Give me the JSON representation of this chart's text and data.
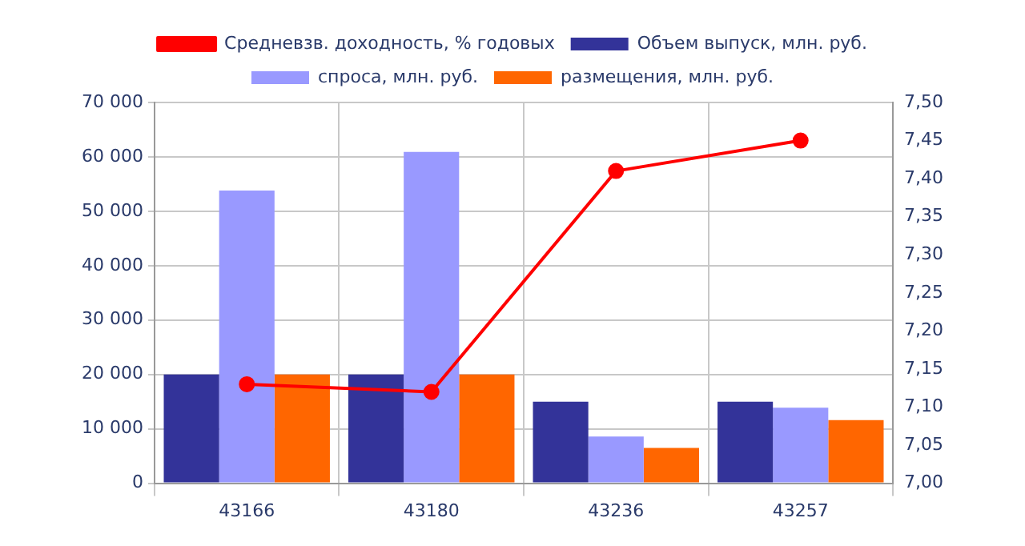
{
  "chart_data": {
    "type": "bar",
    "categories": [
      "43166",
      "43180",
      "43236",
      "43257"
    ],
    "series": [
      {
        "name": "Объем выпуск, млн. руб.",
        "color": "#333399",
        "values": [
          20000,
          20000,
          15000,
          15000
        ]
      },
      {
        "name": "спроса, млн. руб.",
        "color": "#9999ff",
        "values": [
          53800,
          60900,
          8600,
          13900
        ]
      },
      {
        "name": "размещения, млн. руб.",
        "color": "#ff6600",
        "values": [
          20000,
          20000,
          6500,
          11600
        ]
      },
      {
        "name": "Средневзв. доходность, % годовых",
        "color": "#ff0000",
        "type": "line",
        "axis": "y2",
        "marker": "circle",
        "line_style": "solid",
        "values": [
          7.13,
          7.12,
          7.41,
          7.45
        ]
      }
    ],
    "ylim": [
      0,
      70000
    ],
    "yticks": [
      {
        "value": 0,
        "label": "0"
      },
      {
        "value": 10000,
        "label": "10 000"
      },
      {
        "value": 20000,
        "label": "20 000"
      },
      {
        "value": 30000,
        "label": "30 000"
      },
      {
        "value": 40000,
        "label": "40 000"
      },
      {
        "value": 50000,
        "label": "50 000"
      },
      {
        "value": 60000,
        "label": "60 000"
      },
      {
        "value": 70000,
        "label": "70 000"
      }
    ],
    "y2lim": [
      7.0,
      7.5
    ],
    "y2ticks": [
      {
        "value": 7.0,
        "label": "7,00"
      },
      {
        "value": 7.05,
        "label": "7,05"
      },
      {
        "value": 7.1,
        "label": "7,10"
      },
      {
        "value": 7.15,
        "label": "7,15"
      },
      {
        "value": 7.2,
        "label": "7,20"
      },
      {
        "value": 7.25,
        "label": "7,25"
      },
      {
        "value": 7.3,
        "label": "7,30"
      },
      {
        "value": 7.35,
        "label": "7,35"
      },
      {
        "value": 7.4,
        "label": "7,40"
      },
      {
        "value": 7.45,
        "label": "7,45"
      },
      {
        "value": 7.5,
        "label": "7,50"
      }
    ],
    "grid": true,
    "legend": "top"
  }
}
